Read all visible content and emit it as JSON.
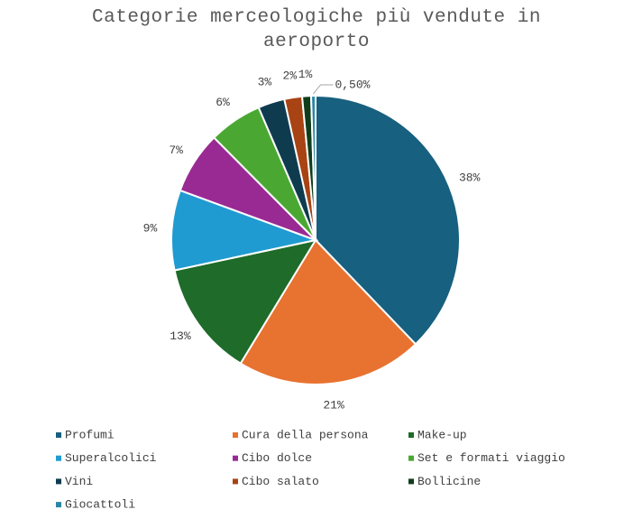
{
  "chart_data": {
    "type": "pie",
    "title": "Categorie merceologiche più vendute in aeroporto",
    "categories": [
      "Profumi",
      "Cura della persona",
      "Make-up",
      "Superalcolici",
      "Cibo dolce",
      "Set e formati viaggio",
      "Vini",
      "Cibo salato",
      "Bollicine",
      "Giocattoli"
    ],
    "values": [
      38,
      21,
      13,
      9,
      7,
      6,
      3,
      2,
      1,
      0.5
    ],
    "value_labels": [
      "38%",
      "21%",
      "13%",
      "9%",
      "7%",
      "6%",
      "3%",
      "2%",
      "1%",
      "0,50%"
    ],
    "colors": [
      "#17607f",
      "#e8722f",
      "#1e6b2a",
      "#1f9bd1",
      "#9a2a93",
      "#4aa832",
      "#0f3b4f",
      "#a84314",
      "#0f3d1c",
      "#2a86a8"
    ],
    "legend": "bottom"
  }
}
